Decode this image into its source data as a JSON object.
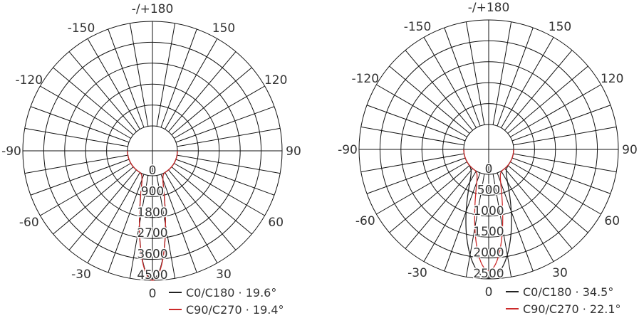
{
  "chart_data": [
    {
      "type": "polar",
      "title": "",
      "angle_labels": [
        {
          "deg": 180,
          "label": "-/+180"
        },
        {
          "deg": 150,
          "label": "150"
        },
        {
          "deg": 120,
          "label": "120"
        },
        {
          "deg": 90,
          "label": "90"
        },
        {
          "deg": 60,
          "label": "60"
        },
        {
          "deg": 30,
          "label": "30"
        },
        {
          "deg": 0,
          "label": "0"
        },
        {
          "deg": -30,
          "label": "-30"
        },
        {
          "deg": -60,
          "label": "-60"
        },
        {
          "deg": -90,
          "label": "-90"
        },
        {
          "deg": -120,
          "label": "-120"
        },
        {
          "deg": -150,
          "label": "-150"
        }
      ],
      "radial_ticks": [
        "0",
        "900",
        "1800",
        "2700",
        "3600",
        "4500"
      ],
      "r_max": 4500,
      "angular_grid_step_deg": 10,
      "grid": true,
      "legend_position": "bottom-right",
      "series": [
        {
          "name": "C0/C180",
          "beam_angle": "19.6°",
          "color": "#222222",
          "peak": 4440,
          "beam_deg": 19.6
        },
        {
          "name": "C90/C270",
          "beam_angle": "19.4°",
          "color": "#cc2a2a",
          "peak": 4500,
          "beam_deg": 19.4
        }
      ]
    },
    {
      "type": "polar",
      "title": "",
      "angle_labels": [
        {
          "deg": 180,
          "label": "-/+180"
        },
        {
          "deg": 150,
          "label": "150"
        },
        {
          "deg": 120,
          "label": "120"
        },
        {
          "deg": 90,
          "label": "90"
        },
        {
          "deg": 60,
          "label": "60"
        },
        {
          "deg": 30,
          "label": "30"
        },
        {
          "deg": 0,
          "label": "0"
        },
        {
          "deg": -30,
          "label": "-30"
        },
        {
          "deg": -60,
          "label": "-60"
        },
        {
          "deg": -90,
          "label": "-90"
        },
        {
          "deg": -120,
          "label": "-120"
        },
        {
          "deg": -150,
          "label": "-150"
        }
      ],
      "radial_ticks": [
        "0",
        "500",
        "1000",
        "1500",
        "2000",
        "2500"
      ],
      "r_max": 2500,
      "angular_grid_step_deg": 10,
      "grid": true,
      "legend_position": "bottom-right",
      "series": [
        {
          "name": "C0/C180",
          "beam_angle": "34.5°",
          "color": "#222222",
          "peak": 2480,
          "beam_deg": 34.5
        },
        {
          "name": "C90/C270",
          "beam_angle": "22.1°",
          "color": "#cc2a2a",
          "peak": 2300,
          "beam_deg": 22.1
        }
      ]
    }
  ]
}
